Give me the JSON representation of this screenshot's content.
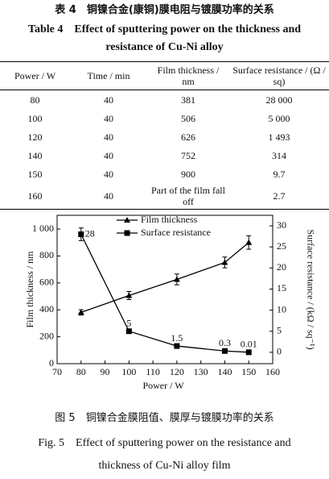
{
  "table": {
    "caption_cn": "表 4　铜镍合金(康铜)膜电阻与镀膜功率的关系",
    "caption_en": "Table 4　Effect of sputtering power on the thickness and resistance of Cu-Ni alloy",
    "header": [
      "Power / W",
      "Time / min",
      "Film thickness / nm",
      "Surface resistance / (Ω / sq)"
    ],
    "rows": [
      [
        "80",
        "40",
        "381",
        "28 000"
      ],
      [
        "100",
        "40",
        "506",
        "5 000"
      ],
      [
        "120",
        "40",
        "626",
        "1 493"
      ],
      [
        "140",
        "40",
        "752",
        "314"
      ],
      [
        "150",
        "40",
        "900",
        "9.7"
      ],
      [
        "160",
        "40",
        "Part of the film fall off",
        "2.7"
      ]
    ]
  },
  "chart_data": {
    "type": "line",
    "x_label": "Power / W",
    "y_label": "Film thickness / nm",
    "y2_label": "Surface resistance / (kΩ / sq⁻¹)",
    "xlim": [
      70,
      160
    ],
    "xticks": [
      70,
      80,
      90,
      100,
      110,
      120,
      130,
      140,
      150,
      160
    ],
    "ylim": [
      0,
      1102
    ],
    "yticks": [
      0,
      200,
      400,
      600,
      800,
      {
        "value": 1000,
        "label": "1 000"
      }
    ],
    "y2lim": [
      -2.7,
      32.5
    ],
    "y2ticks": [
      0,
      5,
      10,
      15,
      20,
      25,
      30
    ],
    "legend": "upper center",
    "series": [
      {
        "name": "Film thickness",
        "color": "#000000",
        "marker": "triangle",
        "x": [
          80,
          100,
          120,
          140,
          150
        ],
        "values": [
          381,
          506,
          626,
          752,
          900
        ],
        "errors": [
          20,
          30,
          40,
          40,
          50
        ]
      },
      {
        "name": "Surface resistance",
        "color": "#000000",
        "marker": "square",
        "axis": "y2",
        "x": [
          80,
          100,
          120,
          140,
          150
        ],
        "values": [
          28,
          5,
          1.493,
          0.314,
          0.0097
        ],
        "value_labels": [
          "28",
          "5",
          "1.5",
          "0.3",
          "0.01"
        ],
        "errors": [
          1.5,
          null,
          null,
          null,
          null
        ]
      }
    ]
  },
  "figure": {
    "caption_cn": "图 5　铜镍合金膜阻值、膜厚与镀膜功率的关系",
    "caption_en": "Fig. 5　Effect of sputtering power on the resistance and thickness of Cu-Ni alloy film"
  }
}
